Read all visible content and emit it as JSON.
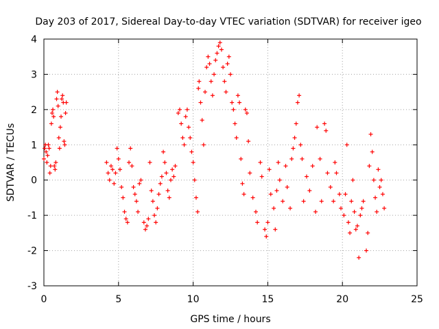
{
  "chart_data": {
    "type": "scatter",
    "title": "Day 203 of 2017, Sidereal Day-to-day VTEC variation (SDTVAR) for receiver igeo",
    "xlabel": "GPS time / hours",
    "ylabel": "SDTVAR / TECUs",
    "xlim": [
      0,
      25
    ],
    "ylim": [
      -3,
      4
    ],
    "xticks": [
      0,
      5,
      10,
      15,
      20,
      25
    ],
    "yticks": [
      -3,
      -2,
      -1,
      0,
      1,
      2,
      3,
      4
    ],
    "xtick_labels": [
      "0",
      "5",
      "10",
      "15",
      "20",
      "25"
    ],
    "ytick_labels": [
      "-3",
      "-2",
      "-1",
      "0",
      "1",
      "2",
      "3",
      "4"
    ],
    "grid": true,
    "marker": "+",
    "marker_color": "#ff0000",
    "series": [
      {
        "name": "igeo",
        "points": [
          [
            0.0,
            0.6
          ],
          [
            0.05,
            0.9
          ],
          [
            0.1,
            1.0
          ],
          [
            0.15,
            0.8
          ],
          [
            0.2,
            0.5
          ],
          [
            0.25,
            0.7
          ],
          [
            0.3,
            1.0
          ],
          [
            0.35,
            0.9
          ],
          [
            0.4,
            0.2
          ],
          [
            0.45,
            0.4
          ],
          [
            0.5,
            1.6
          ],
          [
            0.55,
            1.9
          ],
          [
            0.6,
            2.0
          ],
          [
            0.65,
            1.8
          ],
          [
            0.7,
            0.4
          ],
          [
            0.75,
            0.3
          ],
          [
            0.8,
            0.5
          ],
          [
            0.85,
            2.3
          ],
          [
            0.9,
            2.5
          ],
          [
            0.95,
            2.1
          ],
          [
            1.0,
            1.2
          ],
          [
            1.05,
            0.9
          ],
          [
            1.1,
            1.5
          ],
          [
            1.15,
            1.8
          ],
          [
            1.2,
            2.3
          ],
          [
            1.25,
            2.4
          ],
          [
            1.3,
            2.2
          ],
          [
            1.35,
            1.1
          ],
          [
            1.4,
            1.0
          ],
          [
            1.45,
            1.9
          ],
          [
            1.5,
            2.2
          ],
          [
            4.2,
            0.5
          ],
          [
            4.3,
            0.2
          ],
          [
            4.4,
            0.0
          ],
          [
            4.5,
            0.4
          ],
          [
            4.6,
            0.3
          ],
          [
            4.7,
            -0.1
          ],
          [
            4.8,
            0.2
          ],
          [
            4.9,
            0.9
          ],
          [
            5.0,
            0.6
          ],
          [
            5.1,
            0.3
          ],
          [
            5.2,
            -0.2
          ],
          [
            5.3,
            -0.5
          ],
          [
            5.4,
            -0.9
          ],
          [
            5.5,
            -1.1
          ],
          [
            5.6,
            -1.2
          ],
          [
            5.7,
            0.5
          ],
          [
            5.8,
            0.9
          ],
          [
            5.9,
            0.4
          ],
          [
            6.0,
            -0.2
          ],
          [
            6.1,
            -0.4
          ],
          [
            6.2,
            -0.6
          ],
          [
            6.3,
            -0.9
          ],
          [
            6.4,
            -0.1
          ],
          [
            6.5,
            0.0
          ],
          [
            6.7,
            -1.2
          ],
          [
            6.8,
            -1.4
          ],
          [
            6.9,
            -1.3
          ],
          [
            7.0,
            -1.1
          ],
          [
            7.1,
            0.5
          ],
          [
            7.2,
            -0.3
          ],
          [
            7.3,
            -0.6
          ],
          [
            7.4,
            -1.0
          ],
          [
            7.5,
            -1.2
          ],
          [
            7.6,
            -0.8
          ],
          [
            7.7,
            -0.4
          ],
          [
            7.8,
            -0.1
          ],
          [
            7.9,
            0.1
          ],
          [
            8.0,
            0.8
          ],
          [
            8.1,
            0.5
          ],
          [
            8.2,
            0.2
          ],
          [
            8.3,
            -0.3
          ],
          [
            8.4,
            -0.5
          ],
          [
            8.5,
            0.0
          ],
          [
            8.6,
            0.3
          ],
          [
            8.7,
            0.1
          ],
          [
            8.8,
            0.4
          ],
          [
            9.0,
            1.9
          ],
          [
            9.1,
            2.0
          ],
          [
            9.2,
            1.6
          ],
          [
            9.3,
            1.2
          ],
          [
            9.4,
            1.0
          ],
          [
            9.5,
            1.8
          ],
          [
            9.6,
            2.0
          ],
          [
            9.7,
            1.5
          ],
          [
            9.8,
            1.2
          ],
          [
            9.9,
            0.8
          ],
          [
            10.0,
            0.5
          ],
          [
            10.1,
            0.0
          ],
          [
            10.2,
            -0.5
          ],
          [
            10.3,
            -0.9
          ],
          [
            10.35,
            2.6
          ],
          [
            10.4,
            2.8
          ],
          [
            10.5,
            2.2
          ],
          [
            10.6,
            1.7
          ],
          [
            10.7,
            1.0
          ],
          [
            10.8,
            2.5
          ],
          [
            10.9,
            3.2
          ],
          [
            11.0,
            3.5
          ],
          [
            11.1,
            3.3
          ],
          [
            11.2,
            2.8
          ],
          [
            11.3,
            2.4
          ],
          [
            11.4,
            3.0
          ],
          [
            11.5,
            3.4
          ],
          [
            11.6,
            3.6
          ],
          [
            11.7,
            3.8
          ],
          [
            11.8,
            3.9
          ],
          [
            11.9,
            3.7
          ],
          [
            12.0,
            3.2
          ],
          [
            12.1,
            2.8
          ],
          [
            12.2,
            2.5
          ],
          [
            12.3,
            3.3
          ],
          [
            12.4,
            3.5
          ],
          [
            12.5,
            3.0
          ],
          [
            12.6,
            2.2
          ],
          [
            12.7,
            2.0
          ],
          [
            12.8,
            1.6
          ],
          [
            12.9,
            1.2
          ],
          [
            13.0,
            2.4
          ],
          [
            13.1,
            2.2
          ],
          [
            13.2,
            0.6
          ],
          [
            13.3,
            -0.1
          ],
          [
            13.4,
            -0.4
          ],
          [
            13.5,
            2.0
          ],
          [
            13.6,
            1.9
          ],
          [
            13.7,
            1.1
          ],
          [
            13.8,
            0.2
          ],
          [
            14.0,
            -0.5
          ],
          [
            14.2,
            -0.9
          ],
          [
            14.3,
            -1.2
          ],
          [
            14.5,
            0.5
          ],
          [
            14.6,
            0.1
          ],
          [
            14.8,
            -1.4
          ],
          [
            14.9,
            -1.6
          ],
          [
            15.0,
            -1.2
          ],
          [
            15.1,
            0.3
          ],
          [
            15.2,
            -0.4
          ],
          [
            15.4,
            -0.8
          ],
          [
            15.5,
            -1.4
          ],
          [
            15.6,
            -0.3
          ],
          [
            15.7,
            0.5
          ],
          [
            15.8,
            0.0
          ],
          [
            16.0,
            -0.6
          ],
          [
            16.2,
            0.4
          ],
          [
            16.3,
            -0.2
          ],
          [
            16.5,
            -0.8
          ],
          [
            16.6,
            0.6
          ],
          [
            16.7,
            0.9
          ],
          [
            16.8,
            1.2
          ],
          [
            16.9,
            1.6
          ],
          [
            17.0,
            2.2
          ],
          [
            17.1,
            2.4
          ],
          [
            17.2,
            1.0
          ],
          [
            17.3,
            0.6
          ],
          [
            17.4,
            -0.6
          ],
          [
            17.6,
            0.1
          ],
          [
            17.8,
            -0.3
          ],
          [
            18.0,
            0.4
          ],
          [
            18.2,
            -0.9
          ],
          [
            18.3,
            1.5
          ],
          [
            18.5,
            0.6
          ],
          [
            18.6,
            -0.6
          ],
          [
            18.8,
            1.6
          ],
          [
            18.9,
            1.4
          ],
          [
            19.0,
            0.2
          ],
          [
            19.2,
            -0.2
          ],
          [
            19.4,
            -0.6
          ],
          [
            19.5,
            0.5
          ],
          [
            19.6,
            0.2
          ],
          [
            19.8,
            -0.4
          ],
          [
            19.9,
            -0.8
          ],
          [
            20.1,
            -1.0
          ],
          [
            20.2,
            -0.4
          ],
          [
            20.3,
            1.0
          ],
          [
            20.4,
            -1.2
          ],
          [
            20.5,
            -1.5
          ],
          [
            20.6,
            -0.6
          ],
          [
            20.7,
            0.0
          ],
          [
            20.8,
            -0.9
          ],
          [
            20.9,
            -1.4
          ],
          [
            21.0,
            -1.3
          ],
          [
            21.1,
            -2.2
          ],
          [
            21.2,
            -1.0
          ],
          [
            21.3,
            -0.8
          ],
          [
            21.4,
            -0.6
          ],
          [
            21.6,
            -2.0
          ],
          [
            21.7,
            -1.5
          ],
          [
            21.8,
            0.4
          ],
          [
            21.9,
            1.3
          ],
          [
            22.0,
            0.8
          ],
          [
            22.1,
            0.0
          ],
          [
            22.2,
            -0.5
          ],
          [
            22.3,
            -0.9
          ],
          [
            22.4,
            0.3
          ],
          [
            22.5,
            -0.2
          ],
          [
            22.6,
            0.0
          ],
          [
            22.7,
            -0.4
          ],
          [
            22.8,
            -0.8
          ]
        ]
      }
    ]
  }
}
